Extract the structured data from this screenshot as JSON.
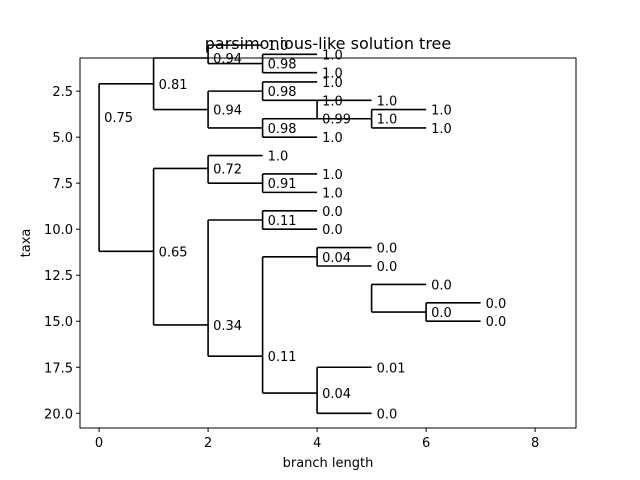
{
  "chart_data": {
    "type": "tree",
    "title": "parsimonious-like solution tree",
    "xlabel": "branch length",
    "ylabel": "taxa",
    "xlim": [
      -0.35,
      8.75
    ],
    "ylim": [
      20.8,
      0.7
    ],
    "x_ticks": [
      0,
      2,
      4,
      6,
      8
    ],
    "y_ticks": [
      2.5,
      5.0,
      7.5,
      10.0,
      12.5,
      15.0,
      17.5,
      20.0
    ],
    "y_tick_labels": [
      "2.5",
      "5.0",
      "7.5",
      "10.0",
      "12.5",
      "15.0",
      "17.5",
      "20.0"
    ],
    "grid": false,
    "line_color": "#000000",
    "nodes": [
      {
        "x": 0,
        "y": 3.9,
        "label": "0.75",
        "children": [
          {
            "x": 1,
            "y": 2.1,
            "label": "0.81",
            "children": [
              {
                "x": 2,
                "y": 0.7,
                "label": "0.94",
                "children": [
                  {
                    "x": 3,
                    "y": 0.0,
                    "label": "1.0"
                  },
                  {
                    "x": 3,
                    "y": 1.0,
                    "label": "0.98",
                    "children": [
                      {
                        "x": 4,
                        "y": 0.5,
                        "label": "1.0"
                      },
                      {
                        "x": 4,
                        "y": 1.5,
                        "label": "1.0"
                      }
                    ]
                  }
                ]
              },
              {
                "x": 2,
                "y": 3.5,
                "label": "0.94",
                "children": [
                  {
                    "x": 3,
                    "y": 2.5,
                    "label": "0.98",
                    "children": [
                      {
                        "x": 4,
                        "y": 2.0,
                        "label": "1.0"
                      },
                      {
                        "x": 4,
                        "y": 3.0,
                        "label": "1.0"
                      }
                    ]
                  },
                  {
                    "x": 3,
                    "y": 4.5,
                    "label": "0.98",
                    "children": [
                      {
                        "x": 4,
                        "y": 4.0,
                        "label": "0.99",
                        "children": [
                          {
                            "x": 5,
                            "y": 3.0,
                            "label": "1.0"
                          },
                          {
                            "x": 5,
                            "y": 4.0,
                            "label": "1.0",
                            "children": [
                              {
                                "x": 6,
                                "y": 3.5,
                                "label": "1.0"
                              },
                              {
                                "x": 6,
                                "y": 4.5,
                                "label": "1.0"
                              }
                            ]
                          }
                        ]
                      },
                      {
                        "x": 4,
                        "y": 5.0,
                        "label": "1.0"
                      }
                    ]
                  }
                ]
              }
            ]
          },
          {
            "x": 1,
            "y": 11.2,
            "label": "0.65",
            "children": [
              {
                "x": 2,
                "y": 6.7,
                "label": "0.72",
                "children": [
                  {
                    "x": 3,
                    "y": 6.0,
                    "label": "1.0"
                  },
                  {
                    "x": 3,
                    "y": 7.5,
                    "label": "0.91",
                    "children": [
                      {
                        "x": 4,
                        "y": 7.0,
                        "label": "1.0"
                      },
                      {
                        "x": 4,
                        "y": 8.0,
                        "label": "1.0"
                      }
                    ]
                  }
                ]
              },
              {
                "x": 2,
                "y": 15.2,
                "label": "0.34",
                "children": [
                  {
                    "x": 3,
                    "y": 9.5,
                    "label": "0.11",
                    "children": [
                      {
                        "x": 4,
                        "y": 9.0,
                        "label": "0.0"
                      },
                      {
                        "x": 4,
                        "y": 10.0,
                        "label": "0.0"
                      }
                    ]
                  },
                  {
                    "x": 3,
                    "y": 16.9,
                    "label": "0.11",
                    "children": [
                      {
                        "x": 4,
                        "y": 11.5,
                        "label": "0.04",
                        "children": [
                          {
                            "x": 5,
                            "y": 11.0,
                            "label": "0.0"
                          },
                          {
                            "x": 5,
                            "y": 12.0,
                            "label": "0.0"
                          }
                        ]
                      },
                      {
                        "x": 4,
                        "y": 18.9,
                        "label": "0.04",
                        "children": [
                          {
                            "x": 5,
                            "y": 17.5,
                            "label": "0.01",
                            "children": [
                              {
                                "x": 6,
                                "y": 13.0,
                                "label": "0.0"
                              },
                              {
                                "x": 6,
                                "y": 14.5,
                                "label": "0.0",
                                "children": [
                                  {
                                    "x": 7,
                                    "y": 14.0,
                                    "label": "0.0"
                                  },
                                  {
                                    "x": 7,
                                    "y": 15.0,
                                    "label": "0.0"
                                  }
                                ]
                              }
                            ]
                          },
                          {
                            "x": 5,
                            "y": 20.0,
                            "label": "0.0"
                          }
                        ]
                      }
                    ]
                  }
                ]
              }
            ]
          }
        ]
      }
    ]
  }
}
